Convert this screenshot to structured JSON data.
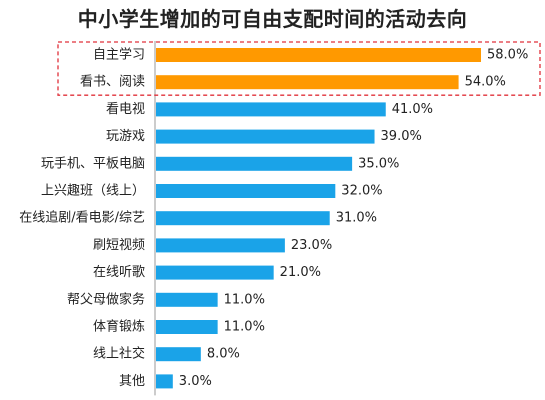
{
  "chart_data": {
    "type": "bar",
    "orientation": "horizontal",
    "title": "中小学生增加的可自由支配时间的活动去向",
    "categories": [
      "自主学习",
      "看书、阅读",
      "看电视",
      "玩游戏",
      "玩手机、平板电脑",
      "上兴趣班（线上）",
      "在线追剧/看电影/综艺",
      "刷短视频",
      "在线听歌",
      "帮父母做家务",
      "体育锻炼",
      "线上社交",
      "其他"
    ],
    "values": [
      58.0,
      54.0,
      41.0,
      39.0,
      35.0,
      32.0,
      31.0,
      23.0,
      21.0,
      11.0,
      11.0,
      8.0,
      3.0
    ],
    "value_labels": [
      "58.0%",
      "54.0%",
      "41.0%",
      "39.0%",
      "35.0%",
      "32.0%",
      "31.0%",
      "23.0%",
      "21.0%",
      "11.0%",
      "11.0%",
      "8.0%",
      "3.0%"
    ],
    "value_unit": "%",
    "xlim": [
      0,
      58.0
    ],
    "highlighted_categories": [
      "自主学习",
      "看书、阅读"
    ],
    "highlight_box": "dashed red border",
    "colors": {
      "highlight": "#FF9900",
      "default": "#1AA3E8",
      "highlight_border": "#E0303A",
      "axis": "#999999",
      "text": "#222222"
    },
    "grid": false,
    "legend": "none"
  }
}
